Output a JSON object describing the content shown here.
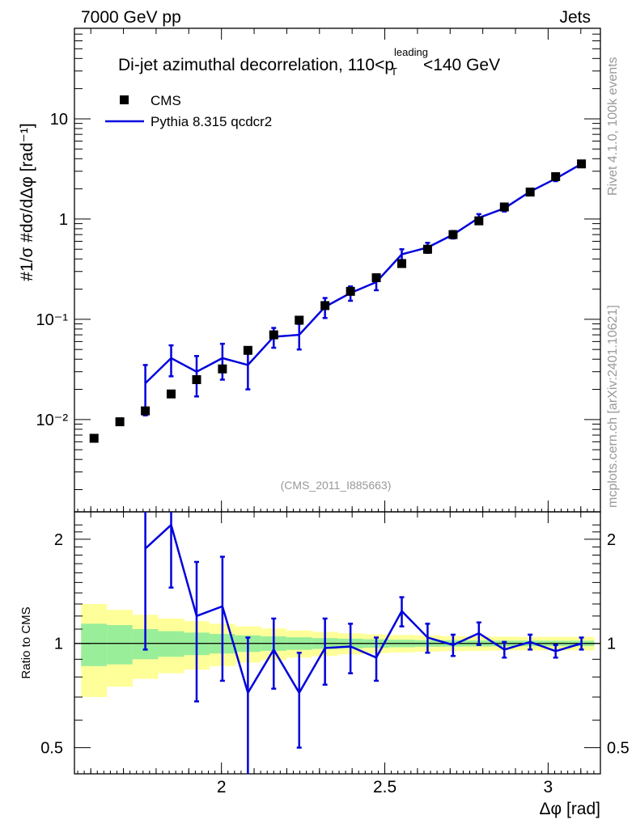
{
  "header": {
    "left": "7000 GeV pp",
    "right": "Jets",
    "title_main": "Di-jet azimuthal decorrelation, 110<p",
    "title_sup": "leading",
    "title_sub": "T",
    "title_tail": "<140 GeV",
    "watermark_top": "Rivet 4.1.0,  100k events",
    "watermark_bottom": "mcplots.cern.ch [arXiv:2401.10621]",
    "analysis_tag": "(CMS_2011_I885663)"
  },
  "legend": {
    "data_label": "CMS",
    "mc_label": "Pythia 8.315 qcdcr2"
  },
  "colors": {
    "data": "#000000",
    "mc": "#0000dd",
    "band_inner": "#99ee99",
    "band_outer": "#ffff99"
  },
  "axes": {
    "upper_ylabel": "#1/σ #dσ/dΔφ [rad⁻¹]",
    "upper_yticks": [
      "10⁻²",
      "10⁻¹",
      "1",
      "10"
    ],
    "lower_ylabel": "Ratio to CMS",
    "lower_yticks": [
      "0.5",
      "1",
      "2"
    ],
    "lower_yticks_right": [
      "0.5",
      "1",
      "2"
    ],
    "xticks": [
      "2",
      "2.5",
      "3"
    ],
    "xlabel": "Δφ [rad]"
  },
  "chart_data": {
    "type": "scatter",
    "x_range": [
      1.55,
      3.16
    ],
    "upper_y_range_log": [
      0.0012,
      80
    ],
    "lower_y_range_log": [
      0.42,
      2.4
    ],
    "x": [
      1.61,
      1.689,
      1.767,
      1.846,
      1.924,
      2.003,
      2.081,
      2.16,
      2.238,
      2.317,
      2.395,
      2.474,
      2.552,
      2.631,
      2.709,
      2.788,
      2.866,
      2.945,
      3.023,
      3.102
    ],
    "data": [
      0.0065,
      0.0095,
      0.0122,
      0.018,
      0.025,
      0.032,
      0.049,
      0.07,
      0.098,
      0.137,
      0.19,
      0.26,
      0.36,
      0.5,
      0.7,
      0.96,
      1.32,
      1.86,
      2.65,
      3.55
    ],
    "mc": [
      null,
      null,
      0.023,
      0.041,
      0.03,
      0.041,
      0.035,
      0.067,
      0.07,
      0.133,
      0.183,
      0.235,
      0.445,
      0.52,
      0.7,
      1.03,
      1.28,
      1.88,
      2.53,
      3.55
    ],
    "mc_err": [
      null,
      null,
      0.012,
      0.014,
      0.013,
      0.016,
      0.015,
      0.015,
      0.02,
      0.03,
      0.03,
      0.04,
      0.055,
      0.06,
      0.06,
      0.09,
      0.09,
      0.12,
      0.14,
      0.2
    ],
    "ratio": [
      null,
      null,
      1.88,
      2.2,
      1.2,
      1.28,
      0.72,
      0.96,
      0.72,
      0.97,
      0.98,
      0.91,
      1.24,
      1.04,
      0.99,
      1.07,
      0.96,
      1.01,
      0.95,
      1.0
    ],
    "ratio_err": [
      null,
      null,
      0.92,
      0.75,
      0.52,
      0.5,
      0.32,
      0.22,
      0.22,
      0.21,
      0.16,
      0.13,
      0.12,
      0.1,
      0.07,
      0.08,
      0.05,
      0.05,
      0.04,
      0.04
    ],
    "band_inner": [
      0.14,
      0.13,
      0.1,
      0.085,
      0.075,
      0.065,
      0.055,
      0.048,
      0.042,
      0.036,
      0.032,
      0.028,
      0.025,
      0.022,
      0.021,
      0.02,
      0.019,
      0.019,
      0.018,
      0.018
    ],
    "band_outer": [
      0.3,
      0.25,
      0.21,
      0.18,
      0.16,
      0.14,
      0.12,
      0.105,
      0.09,
      0.08,
      0.07,
      0.063,
      0.058,
      0.054,
      0.05,
      0.048,
      0.046,
      0.045,
      0.045,
      0.045
    ]
  }
}
